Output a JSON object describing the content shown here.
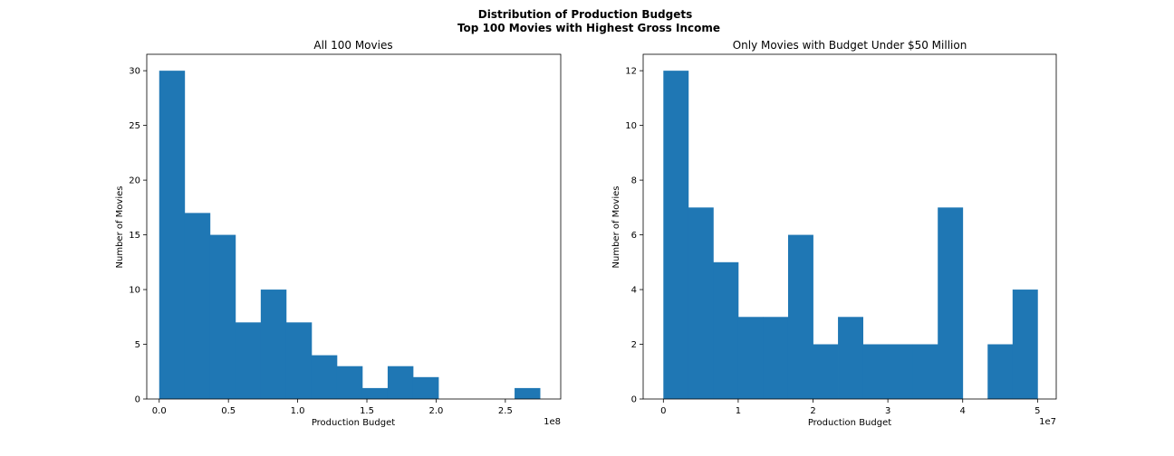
{
  "figure": {
    "title_line1": "Distribution of Production Budgets",
    "title_line2": "Top 100 Movies with Highest Gross Income"
  },
  "colors": {
    "bar": "#1f77b4"
  },
  "chart_data": [
    {
      "type": "bar",
      "title": "All 100 Movies",
      "xlabel": "Production Budget",
      "ylabel": "Number of Movies",
      "x_offset_label": "1e8",
      "x_scale": 100000000,
      "xlim": [
        -0.09,
        2.9
      ],
      "ylim": [
        0,
        31.5
      ],
      "xticks": [
        0.0,
        0.5,
        1.0,
        1.5,
        2.0,
        2.5
      ],
      "xtick_labels": [
        "0.0",
        "0.5",
        "1.0",
        "1.5",
        "2.0",
        "2.5"
      ],
      "yticks": [
        0,
        5,
        10,
        15,
        20,
        25,
        30
      ],
      "ytick_labels": [
        "0",
        "5",
        "10",
        "15",
        "20",
        "25",
        "30"
      ],
      "bin_edges": [
        0.0,
        0.1833,
        0.3667,
        0.55,
        0.7333,
        0.9167,
        1.1,
        1.2833,
        1.4667,
        1.65,
        1.8333,
        2.0167,
        2.2,
        2.3833,
        2.5667,
        2.75
      ],
      "values": [
        30,
        17,
        15,
        7,
        10,
        7,
        4,
        3,
        1,
        3,
        2,
        0,
        0,
        0,
        1
      ],
      "grid": false,
      "legend": "none"
    },
    {
      "type": "bar",
      "title": "Only Movies with Budget Under $50 Million",
      "xlabel": "Production Budget",
      "ylabel": "Number of Movies",
      "x_offset_label": "1e7",
      "x_scale": 10000000,
      "xlim": [
        -0.27,
        5.25
      ],
      "ylim": [
        0,
        12.6
      ],
      "xticks": [
        0,
        1,
        2,
        3,
        4,
        5
      ],
      "xtick_labels": [
        "0",
        "1",
        "2",
        "3",
        "4",
        "5"
      ],
      "yticks": [
        0,
        2,
        4,
        6,
        8,
        10,
        12
      ],
      "ytick_labels": [
        "0",
        "2",
        "4",
        "6",
        "8",
        "10",
        "12"
      ],
      "bin_edges": [
        0.0,
        0.3333,
        0.6667,
        1.0,
        1.3333,
        1.6667,
        2.0,
        2.3333,
        2.6667,
        3.0,
        3.3333,
        3.6667,
        4.0,
        4.3333,
        4.6667,
        5.0
      ],
      "values": [
        12,
        7,
        5,
        3,
        3,
        6,
        2,
        3,
        2,
        2,
        2,
        7,
        0,
        2,
        4
      ],
      "grid": false,
      "legend": "none"
    }
  ]
}
